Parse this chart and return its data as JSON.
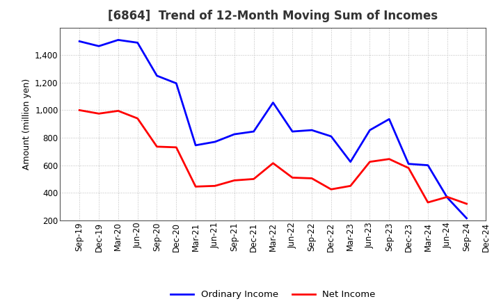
{
  "title": "[6864]  Trend of 12-Month Moving Sum of Incomes",
  "ylabel": "Amount (million yen)",
  "xlabels": [
    "Sep-19",
    "Dec-19",
    "Mar-20",
    "Jun-20",
    "Sep-20",
    "Dec-20",
    "Mar-21",
    "Jun-21",
    "Sep-21",
    "Dec-21",
    "Mar-22",
    "Jun-22",
    "Sep-22",
    "Dec-22",
    "Mar-23",
    "Jun-23",
    "Sep-23",
    "Dec-23",
    "Mar-24",
    "Jun-24",
    "Sep-24",
    "Dec-24"
  ],
  "ordinary_income": [
    1500,
    1465,
    1510,
    1490,
    1250,
    1195,
    745,
    770,
    825,
    845,
    1055,
    845,
    855,
    810,
    625,
    855,
    935,
    610,
    600,
    365,
    215,
    null
  ],
  "net_income": [
    1000,
    975,
    995,
    940,
    735,
    730,
    445,
    450,
    490,
    500,
    615,
    510,
    505,
    425,
    450,
    625,
    645,
    580,
    330,
    370,
    320,
    null
  ],
  "ordinary_income_color": "#0000FF",
  "net_income_color": "#FF0000",
  "ylim": [
    200,
    1600
  ],
  "yticks": [
    200,
    400,
    600,
    800,
    1000,
    1200,
    1400
  ],
  "bg_color": "#FFFFFF",
  "plot_bg_color": "#FFFFFF",
  "grid_color": "#BBBBBB",
  "grid_style": "dotted",
  "line_width": 2.0,
  "title_fontsize": 12,
  "title_color": "#333333",
  "axis_label_fontsize": 9,
  "tick_fontsize": 8.5,
  "legend_labels": [
    "Ordinary Income",
    "Net Income"
  ]
}
